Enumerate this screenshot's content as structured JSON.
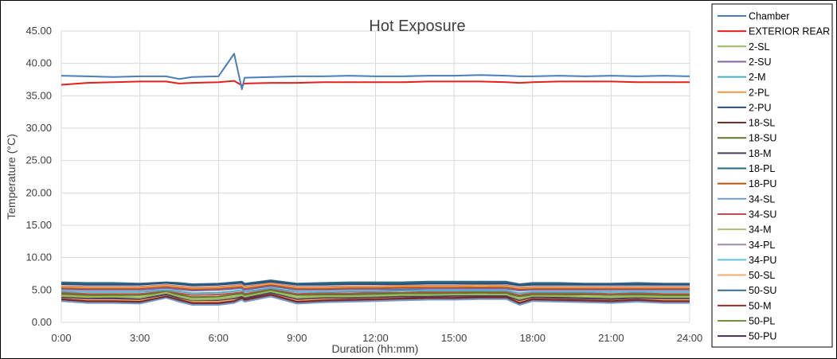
{
  "chart_data": {
    "type": "line",
    "title": "Hot Exposure",
    "xlabel": "Duration (hh:mm)",
    "ylabel": "Temperature (°C)",
    "xlim": [
      0,
      24
    ],
    "ylim": [
      0,
      45
    ],
    "x_ticks": [
      "0:00",
      "3:00",
      "6:00",
      "9:00",
      "12:00",
      "15:00",
      "18:00",
      "21:00",
      "24:00"
    ],
    "y_ticks": [
      "0.00",
      "5.00",
      "10.00",
      "15.00",
      "20.00",
      "25.00",
      "30.00",
      "35.00",
      "40.00",
      "45.00"
    ],
    "grid": true,
    "legend_position": "right",
    "x_hours": [
      0,
      1,
      2,
      3,
      4,
      4.5,
      5,
      6,
      6.6,
      6.9,
      7,
      8,
      9,
      10,
      11,
      12,
      13,
      14,
      15,
      16,
      17,
      17.5,
      18,
      19,
      20,
      21,
      22,
      23,
      24
    ],
    "series": [
      {
        "name": "Chamber",
        "color": "#4a7ebb",
        "values": [
          38.1,
          38.0,
          37.9,
          38.0,
          38.0,
          37.6,
          37.9,
          38.0,
          41.5,
          36.0,
          37.8,
          37.9,
          38.0,
          38.0,
          38.1,
          38.0,
          38.0,
          38.1,
          38.1,
          38.2,
          38.1,
          38.0,
          38.0,
          38.1,
          38.0,
          38.1,
          38.0,
          38.1,
          38.0
        ]
      },
      {
        "name": "EXTERIOR REAR",
        "color": "#e3201b",
        "values": [
          36.7,
          37.0,
          37.1,
          37.2,
          37.2,
          36.9,
          37.0,
          37.1,
          37.3,
          36.6,
          36.9,
          37.0,
          37.0,
          37.1,
          37.1,
          37.1,
          37.1,
          37.2,
          37.2,
          37.2,
          37.1,
          37.0,
          37.1,
          37.2,
          37.2,
          37.2,
          37.1,
          37.1,
          37.1
        ]
      },
      {
        "name": "2-SL",
        "color": "#9bbb59",
        "values": [
          4.1,
          3.9,
          4.0,
          3.8,
          4.6,
          4.0,
          3.5,
          3.6,
          3.9,
          4.2,
          4.0,
          4.8,
          3.8,
          4.0,
          4.0,
          4.1,
          4.2,
          4.2,
          4.3,
          4.3,
          4.3,
          3.6,
          4.1,
          4.1,
          4.0,
          3.9,
          4.0,
          3.9,
          3.9
        ]
      },
      {
        "name": "2-SU",
        "color": "#8064a2",
        "values": [
          5.1,
          5.0,
          5.0,
          5.0,
          5.3,
          5.1,
          4.9,
          5.0,
          5.2,
          5.3,
          5.0,
          5.6,
          5.0,
          5.0,
          5.1,
          5.1,
          5.1,
          5.2,
          5.2,
          5.2,
          5.2,
          4.9,
          5.0,
          5.0,
          5.0,
          5.0,
          5.0,
          5.0,
          5.0
        ]
      },
      {
        "name": "2-M",
        "color": "#4bacc6",
        "values": [
          4.8,
          4.7,
          4.7,
          4.7,
          5.0,
          4.8,
          4.5,
          4.6,
          4.8,
          5.0,
          4.7,
          5.3,
          4.7,
          4.7,
          4.8,
          4.8,
          4.9,
          4.9,
          4.9,
          4.9,
          4.9,
          4.5,
          4.7,
          4.7,
          4.7,
          4.7,
          4.7,
          4.7,
          4.7
        ]
      },
      {
        "name": "2-PL",
        "color": "#f79646",
        "values": [
          5.5,
          5.4,
          5.4,
          5.4,
          5.7,
          5.5,
          5.3,
          5.4,
          5.6,
          5.7,
          5.4,
          6.0,
          5.4,
          5.4,
          5.5,
          5.5,
          5.6,
          5.6,
          5.6,
          5.7,
          5.6,
          5.3,
          5.4,
          5.4,
          5.4,
          5.4,
          5.4,
          5.4,
          5.4
        ]
      },
      {
        "name": "2-PU",
        "color": "#2c4d75",
        "values": [
          5.9,
          5.8,
          5.8,
          5.8,
          6.1,
          5.9,
          5.7,
          5.8,
          6.0,
          6.1,
          5.8,
          6.3,
          5.8,
          5.8,
          5.9,
          5.9,
          5.9,
          6.0,
          6.0,
          6.0,
          6.0,
          5.7,
          5.8,
          5.8,
          5.8,
          5.8,
          5.8,
          5.8,
          5.8
        ]
      },
      {
        "name": "18-SL",
        "color": "#772c2a",
        "values": [
          3.6,
          3.3,
          3.3,
          3.2,
          4.0,
          3.5,
          3.0,
          3.0,
          3.3,
          3.8,
          3.5,
          4.3,
          3.2,
          3.4,
          3.5,
          3.6,
          3.7,
          3.8,
          3.8,
          3.9,
          3.9,
          3.0,
          3.6,
          3.5,
          3.4,
          3.3,
          3.5,
          3.3,
          3.3
        ]
      },
      {
        "name": "18-SU",
        "color": "#5f7530",
        "values": [
          4.4,
          4.2,
          4.2,
          4.2,
          4.7,
          4.3,
          3.9,
          4.0,
          4.3,
          4.5,
          4.2,
          5.0,
          4.2,
          4.3,
          4.3,
          4.4,
          4.5,
          4.5,
          4.5,
          4.6,
          4.5,
          4.0,
          4.3,
          4.3,
          4.3,
          4.2,
          4.3,
          4.2,
          4.2
        ]
      },
      {
        "name": "18-M",
        "color": "#4d3b62",
        "values": [
          3.9,
          3.7,
          3.7,
          3.6,
          4.3,
          3.8,
          3.4,
          3.5,
          3.7,
          4.0,
          3.7,
          4.6,
          3.6,
          3.8,
          3.8,
          3.9,
          4.0,
          4.0,
          4.1,
          4.1,
          4.1,
          3.4,
          3.9,
          3.8,
          3.7,
          3.6,
          3.8,
          3.7,
          3.7
        ]
      },
      {
        "name": "18-PL",
        "color": "#276a7c",
        "values": [
          6.0,
          5.9,
          5.9,
          5.9,
          6.1,
          6.0,
          5.8,
          5.9,
          6.1,
          6.2,
          5.9,
          6.4,
          5.9,
          6.0,
          6.1,
          6.1,
          6.1,
          6.2,
          6.2,
          6.2,
          6.2,
          5.8,
          6.0,
          6.0,
          5.9,
          5.9,
          6.0,
          5.9,
          5.9
        ]
      },
      {
        "name": "18-PU",
        "color": "#b65708",
        "values": [
          5.3,
          5.2,
          5.2,
          5.2,
          5.5,
          5.3,
          5.1,
          5.2,
          5.4,
          5.5,
          5.2,
          5.8,
          5.2,
          5.2,
          5.3,
          5.3,
          5.4,
          5.4,
          5.4,
          5.4,
          5.4,
          5.1,
          5.2,
          5.2,
          5.2,
          5.2,
          5.2,
          5.2,
          5.2
        ]
      },
      {
        "name": "34-SL",
        "color": "#729aca",
        "values": [
          3.3,
          3.0,
          3.0,
          2.9,
          3.8,
          3.2,
          2.7,
          2.7,
          3.0,
          3.5,
          3.2,
          4.0,
          2.9,
          3.1,
          3.2,
          3.3,
          3.4,
          3.5,
          3.5,
          3.6,
          3.6,
          2.7,
          3.3,
          3.2,
          3.1,
          3.0,
          3.2,
          3.0,
          3.0
        ]
      },
      {
        "name": "34-SU",
        "color": "#c0504d",
        "values": [
          4.6,
          4.4,
          4.4,
          4.4,
          4.8,
          4.5,
          4.2,
          4.3,
          4.5,
          4.7,
          4.4,
          5.1,
          4.4,
          4.5,
          4.5,
          4.6,
          4.6,
          4.7,
          4.7,
          4.7,
          4.7,
          4.2,
          4.5,
          4.5,
          4.5,
          4.4,
          4.5,
          4.4,
          4.4
        ]
      },
      {
        "name": "34-M",
        "color": "#aabd72",
        "values": [
          4.2,
          4.0,
          4.0,
          3.9,
          4.5,
          4.1,
          3.7,
          3.8,
          4.0,
          4.3,
          4.0,
          4.8,
          3.9,
          4.1,
          4.1,
          4.2,
          4.3,
          4.3,
          4.3,
          4.4,
          4.3,
          3.7,
          4.1,
          4.1,
          4.0,
          3.9,
          4.1,
          4.0,
          4.0
        ]
      },
      {
        "name": "34-PL",
        "color": "#9d8ab5",
        "values": [
          5.6,
          5.5,
          5.5,
          5.5,
          5.8,
          5.6,
          5.4,
          5.5,
          5.7,
          5.8,
          5.5,
          6.1,
          5.5,
          5.5,
          5.6,
          5.6,
          5.7,
          5.7,
          5.7,
          5.8,
          5.7,
          5.4,
          5.5,
          5.5,
          5.5,
          5.5,
          5.5,
          5.5,
          5.5
        ]
      },
      {
        "name": "34-PU",
        "color": "#5fc1d5",
        "values": [
          5.2,
          5.1,
          5.1,
          5.1,
          5.4,
          5.2,
          5.0,
          5.1,
          5.3,
          5.4,
          5.1,
          5.7,
          5.1,
          5.1,
          5.2,
          5.2,
          5.3,
          5.3,
          5.3,
          5.3,
          5.3,
          5.0,
          5.1,
          5.1,
          5.1,
          5.1,
          5.1,
          5.1,
          5.1
        ]
      },
      {
        "name": "50-SL",
        "color": "#f9ab6b",
        "values": [
          3.7,
          3.5,
          3.5,
          3.4,
          4.2,
          3.6,
          3.2,
          3.2,
          3.5,
          3.9,
          3.6,
          4.4,
          3.4,
          3.6,
          3.6,
          3.7,
          3.8,
          3.9,
          3.9,
          4.0,
          4.0,
          3.2,
          3.7,
          3.6,
          3.5,
          3.4,
          3.6,
          3.5,
          3.5
        ]
      },
      {
        "name": "50-SU",
        "color": "#3b6b8c",
        "values": [
          6.2,
          6.1,
          6.1,
          6.0,
          6.2,
          6.1,
          5.9,
          6.0,
          6.2,
          6.3,
          6.0,
          6.5,
          6.0,
          6.1,
          6.2,
          6.2,
          6.2,
          6.3,
          6.3,
          6.3,
          6.3,
          5.9,
          6.1,
          6.1,
          6.0,
          6.0,
          6.1,
          6.0,
          6.0
        ]
      },
      {
        "name": "50-M",
        "color": "#9c2f2b",
        "values": [
          3.5,
          3.2,
          3.2,
          3.1,
          3.9,
          3.4,
          2.9,
          2.9,
          3.2,
          3.7,
          3.4,
          4.2,
          3.1,
          3.3,
          3.4,
          3.5,
          3.6,
          3.7,
          3.7,
          3.8,
          3.8,
          2.9,
          3.5,
          3.4,
          3.3,
          3.2,
          3.4,
          3.2,
          3.2
        ]
      },
      {
        "name": "50-PL",
        "color": "#76923c",
        "values": [
          4.0,
          3.8,
          3.8,
          3.7,
          4.4,
          3.9,
          3.5,
          3.6,
          3.8,
          4.1,
          3.8,
          4.7,
          3.7,
          3.9,
          3.9,
          4.0,
          4.1,
          4.1,
          4.2,
          4.2,
          4.2,
          3.5,
          4.0,
          3.9,
          3.8,
          3.7,
          3.9,
          3.8,
          3.8
        ]
      },
      {
        "name": "50-PU",
        "color": "#403152",
        "values": [
          3.8,
          3.6,
          3.6,
          3.5,
          4.2,
          3.7,
          3.3,
          3.3,
          3.6,
          4.0,
          3.6,
          4.5,
          3.5,
          3.7,
          3.7,
          3.8,
          3.9,
          3.9,
          4.0,
          4.0,
          4.0,
          3.3,
          3.8,
          3.7,
          3.6,
          3.5,
          3.7,
          3.6,
          3.6
        ]
      }
    ]
  }
}
